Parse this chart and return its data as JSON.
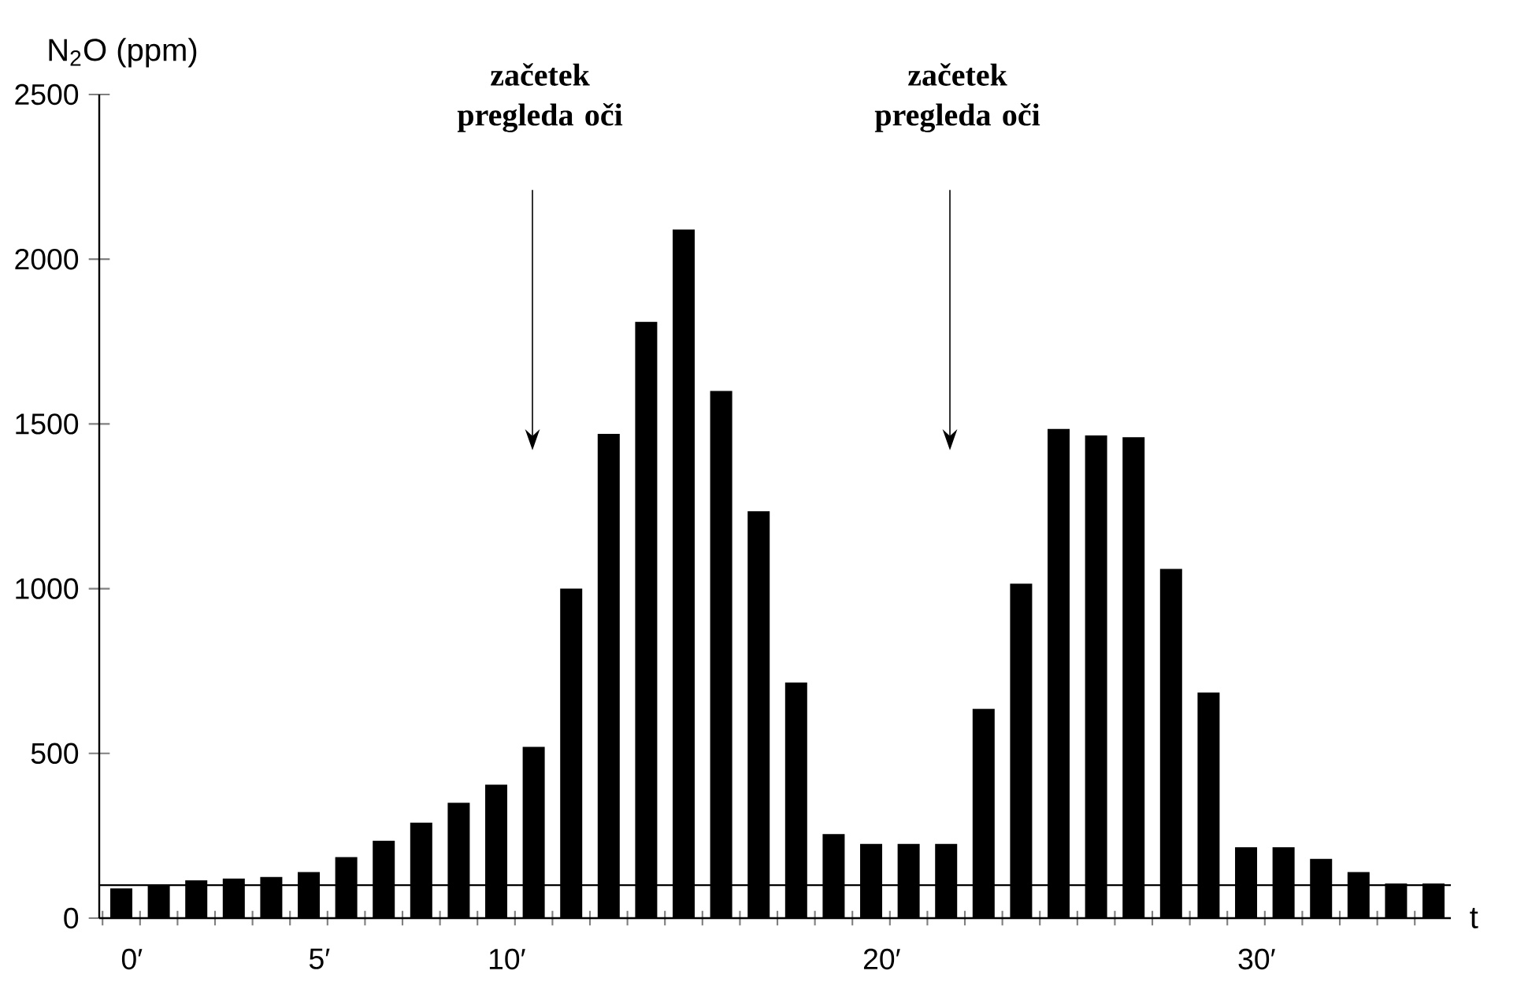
{
  "chart_data": {
    "type": "bar",
    "ylabel": "N$_{2}$O (ppm)",
    "xlabel": "t",
    "categories": [
      "0′",
      null,
      null,
      null,
      null,
      "5′",
      null,
      null,
      null,
      null,
      "10′",
      null,
      null,
      null,
      null,
      null,
      null,
      null,
      null,
      null,
      "20′",
      null,
      null,
      null,
      null,
      null,
      null,
      null,
      null,
      null,
      "30′",
      null,
      null,
      null,
      null,
      null
    ],
    "values": [
      90,
      100,
      115,
      120,
      125,
      140,
      185,
      235,
      290,
      350,
      405,
      520,
      1000,
      1470,
      1810,
      2090,
      1600,
      1235,
      715,
      255,
      225,
      225,
      225,
      635,
      1015,
      1485,
      1465,
      1460,
      1060,
      685,
      215,
      215,
      180,
      140,
      105,
      105
    ],
    "color": "#000000",
    "ylim": [
      0,
      2500
    ],
    "yticks": [
      0,
      500,
      1000,
      1500,
      2000,
      2500
    ],
    "ref_lines": [
      {
        "axis": "y",
        "value": 100,
        "color": "#000000"
      }
    ],
    "annotations": [
      "začetek pregleda oči",
      "začetek pregleda oči"
    ],
    "grid": false
  }
}
